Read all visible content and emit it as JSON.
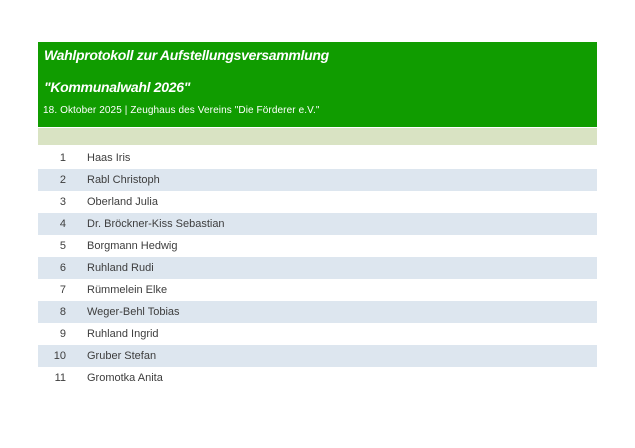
{
  "document": {
    "title_line1": "Wahlprotokoll zur Aufstellungsversammlung",
    "title_line2": "\"Kommunalwahl 2026\"",
    "dateline": "18. Oktober 2025 | Zeughaus des Vereins \"Die Förderer e.V.\""
  },
  "colors": {
    "banner_green": "#109c00",
    "banner_text": "#ffffff",
    "strip_green": "#d9e3c3",
    "row_alt_blue": "#dde6ef",
    "text_dark": "#3d3d3d"
  },
  "table": {
    "rows": [
      {
        "num": "1",
        "name": "Haas Iris"
      },
      {
        "num": "2",
        "name": "Rabl Christoph"
      },
      {
        "num": "3",
        "name": "Oberland Julia"
      },
      {
        "num": "4",
        "name": "Dr. Bröckner-Kiss Sebastian"
      },
      {
        "num": "5",
        "name": "Borgmann Hedwig"
      },
      {
        "num": "6",
        "name": "Ruhland Rudi"
      },
      {
        "num": "7",
        "name": "Rümmelein Elke"
      },
      {
        "num": "8",
        "name": "Weger-Behl Tobias"
      },
      {
        "num": "9",
        "name": "Ruhland Ingrid"
      },
      {
        "num": "10",
        "name": "Gruber Stefan"
      },
      {
        "num": "11",
        "name": "Gromotka Anita"
      }
    ]
  }
}
